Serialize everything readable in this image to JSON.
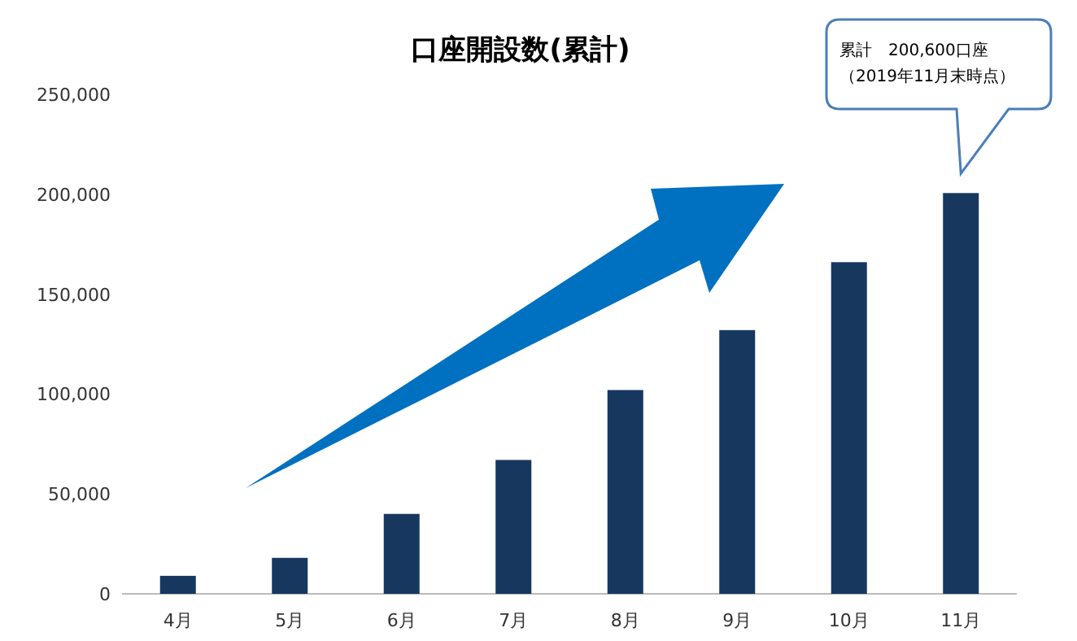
{
  "chart_data": {
    "type": "bar",
    "title": "口座開設数(累計)",
    "categories": [
      "4月",
      "5月",
      "6月",
      "7月",
      "8月",
      "9月",
      "10月",
      "11月"
    ],
    "values": [
      9000,
      18000,
      40000,
      67000,
      102000,
      132000,
      166000,
      200600
    ],
    "color": "#17375e",
    "ylim": [
      0,
      250000
    ],
    "yticks": [
      0,
      {
        "value": 50000,
        "label": "50,000"
      },
      {
        "value": 100000,
        "label": "100,000"
      },
      {
        "value": 150000,
        "label": "150,000"
      },
      {
        "value": 200000,
        "label": "200,000"
      },
      {
        "value": 250000,
        "label": "250,000"
      }
    ],
    "grid": false,
    "annotations": [
      "累計　200,600口座",
      "（2019年11月末時点）"
    ]
  }
}
